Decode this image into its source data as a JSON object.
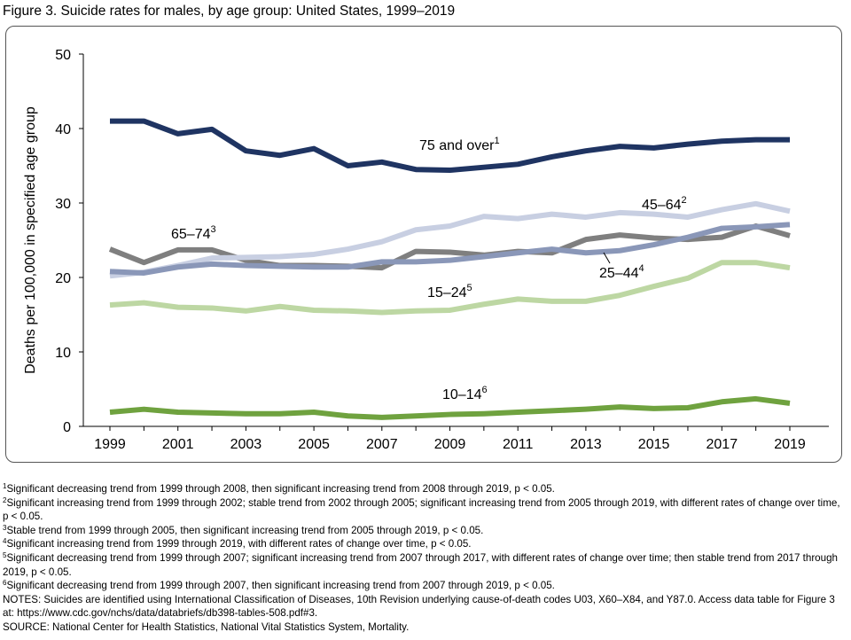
{
  "title": "Figure 3. Suicide rates for males, by age group: United States, 1999–2019",
  "chart_data": {
    "type": "line",
    "title": "Figure 3. Suicide rates for males, by age group: United States, 1999–2019",
    "xlabel": "",
    "ylabel": "Deaths per 100,000 in specified age group",
    "ylim": [
      0,
      50
    ],
    "yticks": [
      "0",
      "10",
      "20",
      "30",
      "40",
      "50"
    ],
    "xticks": [
      "1999",
      "2001",
      "2003",
      "2005",
      "2007",
      "2009",
      "2011",
      "2013",
      "2015",
      "2017",
      "2019"
    ],
    "x": [
      1999,
      2000,
      2001,
      2002,
      2003,
      2004,
      2005,
      2006,
      2007,
      2008,
      2009,
      2010,
      2011,
      2012,
      2013,
      2014,
      2015,
      2016,
      2017,
      2018,
      2019
    ],
    "series": [
      {
        "name": "65–74",
        "sup": "3",
        "color": "#7f7f7f",
        "values": [
          23.8,
          22.0,
          23.7,
          23.7,
          22.3,
          21.6,
          21.6,
          21.5,
          21.3,
          23.5,
          23.4,
          23.0,
          23.5,
          23.3,
          25.1,
          25.7,
          25.3,
          25.1,
          25.4,
          26.9,
          25.6
        ]
      },
      {
        "name": "45–64",
        "sup": "2",
        "color": "#c8cfe2",
        "values": [
          20.2,
          20.7,
          21.6,
          22.6,
          22.7,
          22.8,
          23.1,
          23.8,
          24.8,
          26.4,
          26.9,
          28.2,
          27.9,
          28.5,
          28.1,
          28.7,
          28.5,
          28.1,
          29.1,
          29.9,
          28.9
        ]
      },
      {
        "name": "25–44",
        "sup": "4",
        "color": "#8a97b8",
        "values": [
          20.8,
          20.6,
          21.4,
          21.8,
          21.6,
          21.5,
          21.4,
          21.4,
          22.1,
          22.1,
          22.3,
          22.8,
          23.3,
          23.8,
          23.3,
          23.6,
          24.4,
          25.4,
          26.6,
          26.8,
          27.1
        ]
      },
      {
        "name": "15–24",
        "sup": "5",
        "color": "#bdd7a3",
        "values": [
          16.3,
          16.6,
          16.0,
          15.9,
          15.5,
          16.1,
          15.6,
          15.5,
          15.3,
          15.5,
          15.6,
          16.4,
          17.1,
          16.8,
          16.8,
          17.6,
          18.8,
          19.9,
          22.0,
          22.0,
          21.3
        ]
      },
      {
        "name": "10–14",
        "sup": "6",
        "color": "#6fa23f",
        "values": [
          1.9,
          2.3,
          1.9,
          1.8,
          1.7,
          1.7,
          1.9,
          1.4,
          1.2,
          1.4,
          1.6,
          1.7,
          1.9,
          2.1,
          2.3,
          2.6,
          2.4,
          2.5,
          3.3,
          3.7,
          3.1
        ]
      },
      {
        "name": "75 and over",
        "sup": "1",
        "color": "#1f3462",
        "values": [
          41.0,
          41.0,
          39.3,
          39.9,
          37.0,
          36.4,
          37.3,
          35.0,
          35.5,
          34.5,
          34.4,
          34.8,
          35.2,
          36.2,
          37.0,
          37.6,
          37.4,
          37.9,
          38.3,
          38.5,
          38.5
        ]
      }
    ]
  },
  "notes": [
    {
      "sup": "1",
      "text": "Significant decreasing trend from 1999 through 2008, then significant increasing trend from 2008 through 2019, p < 0.05."
    },
    {
      "sup": "2",
      "text": "Significant increasing trend from 1999 through 2002; stable trend from 2002 through 2005; significant increasing trend from 2005 through 2019, with different rates of change over time, p < 0.05."
    },
    {
      "sup": "3",
      "text": "Stable trend from 1999 through 2005, then significant increasing trend from 2005 through 2019, p < 0.05."
    },
    {
      "sup": "4",
      "text": "Significant increasing trend from 1999 through 2019, with different rates of change over time, p < 0.05."
    },
    {
      "sup": "5",
      "text": "Significant decreasing trend from 1999 through 2007; significant increasing trend from 2007 through 2017, with different rates of change over time; then stable trend from 2017 through 2019, p < 0.05."
    },
    {
      "sup": "6",
      "text": "Significant decreasing trend from 1999 through 2007, then significant increasing trend from 2007 through 2019, p < 0.05."
    }
  ],
  "notes_line": "NOTES: Suicides are identified using International Classification of Diseases, 10th Revision underlying cause-of-death codes U03, X60–X84, and Y87.0. Access data table for Figure 3 at: https://www.cdc.gov/nchs/data/databriefs/db398-tables-508.pdf#3.",
  "source": "SOURCE: National Center for Health Statistics, National Vital Statistics System, Mortality."
}
